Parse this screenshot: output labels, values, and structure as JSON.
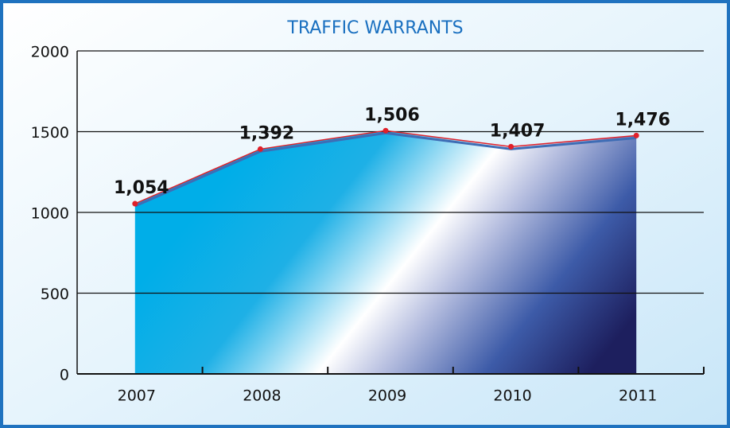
{
  "chart_data": {
    "type": "area",
    "title": "TRAFFIC WARRANTS",
    "categories": [
      "2007",
      "2008",
      "2009",
      "2010",
      "2011"
    ],
    "values": [
      1054,
      1392,
      1506,
      1407,
      1476
    ],
    "value_labels": [
      "1,054",
      "1,392",
      "1,506",
      "1,407",
      "1,476"
    ],
    "color": "#e0202a",
    "ylim": [
      0,
      2000
    ],
    "yticks": [
      0,
      500,
      1000,
      1500,
      2000
    ],
    "grid": true
  }
}
